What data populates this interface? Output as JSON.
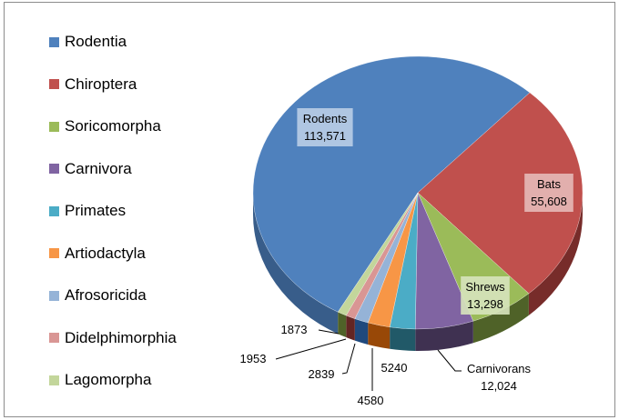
{
  "chart_data": {
    "type": "pie",
    "style": "3d",
    "title": "",
    "legend_position": "left",
    "start_angle_deg": 209,
    "slices": [
      {
        "name": "Rodentia",
        "value": 113571,
        "label": "Rodents",
        "value_label": "113,571",
        "color": "#4F81BD",
        "side": "#385D8A",
        "label_bg": "#B9CDE5"
      },
      {
        "name": "Chiroptera",
        "value": 55608,
        "label": "Bats",
        "value_label": "55,608",
        "color": "#C0504D",
        "side": "#772C2A",
        "label_bg": "#E6B9B8"
      },
      {
        "name": "Soricomorpha",
        "value": 13298,
        "label": "Shrews",
        "value_label": "13,298",
        "color": "#9BBB59",
        "side": "#4F6228",
        "label_bg": "#D7E4BD"
      },
      {
        "name": "Carnivora",
        "value": 12024,
        "label": "Carnivorans",
        "value_label": "12,024",
        "color": "#8064A2",
        "side": "#3F3151"
      },
      {
        "name": "Primates",
        "value": 5240,
        "label": "",
        "value_label": "5240",
        "color": "#4BACC6",
        "side": "#215968"
      },
      {
        "name": "Artiodactyla",
        "value": 4580,
        "label": "",
        "value_label": "4580",
        "color": "#F79646",
        "side": "#984807"
      },
      {
        "name": "Afrosoricida",
        "value": 2839,
        "label": "",
        "value_label": "2839",
        "color": "#95B3D7",
        "side": "#1F497D"
      },
      {
        "name": "Didelphimorphia",
        "value": 1953,
        "label": "",
        "value_label": "1953",
        "color": "#D99694",
        "side": "#632523"
      },
      {
        "name": "Lagomorpha",
        "value": 1873,
        "label": "",
        "value_label": "1873",
        "color": "#C3D69B",
        "side": "#4F6228"
      }
    ]
  }
}
